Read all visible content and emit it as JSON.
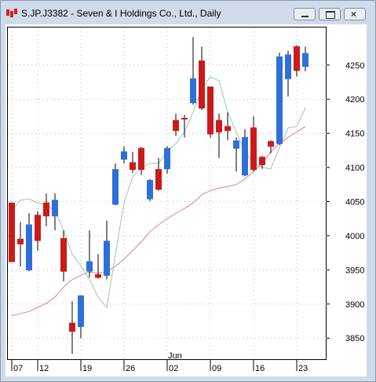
{
  "window_title": "S.JP.J3382 - Seven & I Holdings Co., Ltd., Daily",
  "chart_data": {
    "type": "candlestick",
    "categories": [
      "07",
      null,
      null,
      "12",
      null,
      null,
      null,
      null,
      "19",
      null,
      null,
      null,
      null,
      "26",
      null,
      null,
      null,
      null,
      "02",
      null,
      null,
      null,
      null,
      "09",
      null,
      null,
      null,
      null,
      "16",
      null,
      null,
      null,
      null,
      "23",
      null
    ],
    "month_label": "Jun",
    "month_label_index": 18,
    "open": [
      4048,
      3995,
      3950,
      4030,
      4048,
      4029,
      3996,
      3872,
      3867,
      3948,
      3943,
      3942,
      4046,
      4112,
      4107,
      4128,
      4054,
      4097,
      4098,
      4169,
      4172,
      4195,
      4256,
      4218,
      4169,
      4160,
      4128,
      4089,
      4158,
      4115,
      4138,
      4135,
      4230,
      4277,
      4248
    ],
    "high": [
      4048,
      4020,
      4033,
      4036,
      4062,
      4062,
      4008,
      3904,
      3912,
      4008,
      3973,
      4022,
      4106,
      4131,
      4123,
      4130,
      4083,
      4114,
      4131,
      4179,
      4177,
      4291,
      4277,
      4218,
      4179,
      4181,
      4144,
      4156,
      4175,
      4117,
      4140,
      4268,
      4271,
      4279,
      4277
    ],
    "low": [
      3962,
      3955,
      3948,
      3978,
      4014,
      4008,
      3933,
      3827,
      3850,
      3939,
      3937,
      3936,
      4045,
      4106,
      4092,
      4089,
      4051,
      4066,
      4091,
      4146,
      4144,
      4192,
      4184,
      4144,
      4114,
      4140,
      4094,
      4087,
      4094,
      4098,
      4121,
      4133,
      4204,
      4233,
      4241
    ],
    "close": [
      3962,
      3988,
      4016,
      3993,
      4029,
      4052,
      3948,
      3860,
      3912,
      3962,
      3939,
      3992,
      4097,
      4123,
      4097,
      4097,
      4081,
      4068,
      4128,
      4154,
      4171,
      4230,
      4187,
      4149,
      4152,
      4154,
      4139,
      4144,
      4097,
      4104,
      4131,
      4262,
      4265,
      4242,
      4267
    ],
    "up_color": "#2f6fd8",
    "down_color": "#cc1a1a",
    "lines": [
      {
        "color": "#9cc8a4",
        "values": [
          4037,
          4052,
          4054,
          4048,
          4045,
          4037,
          4008,
          3973,
          3956,
          3936,
          3910,
          3895,
          3973,
          4048,
          4086,
          4100,
          4106,
          4106,
          4123,
          4135,
          4152,
          4181,
          4215,
          4233,
          4227,
          4181,
          4152,
          4123,
          4106,
          4100,
          4098,
          4129,
          4158,
          4160,
          4187
        ]
      },
      {
        "color": "#e07aa8",
        "values": [
          3883,
          3886,
          3889,
          3895,
          3901,
          3910,
          3925,
          3936,
          3942,
          3947,
          3945,
          3948,
          3955,
          3966,
          3978,
          3991,
          4006,
          4016,
          4025,
          4033,
          4040,
          4048,
          4060,
          4066,
          4070,
          4072,
          4075,
          4083,
          4094,
          4106,
          4123,
          4135,
          4144,
          4152,
          4160
        ]
      }
    ],
    "ylim": [
      3818,
      4305
    ],
    "yticks": [
      3850,
      3900,
      3950,
      4000,
      4050,
      4100,
      4150,
      4200,
      4250
    ],
    "grid": true
  }
}
